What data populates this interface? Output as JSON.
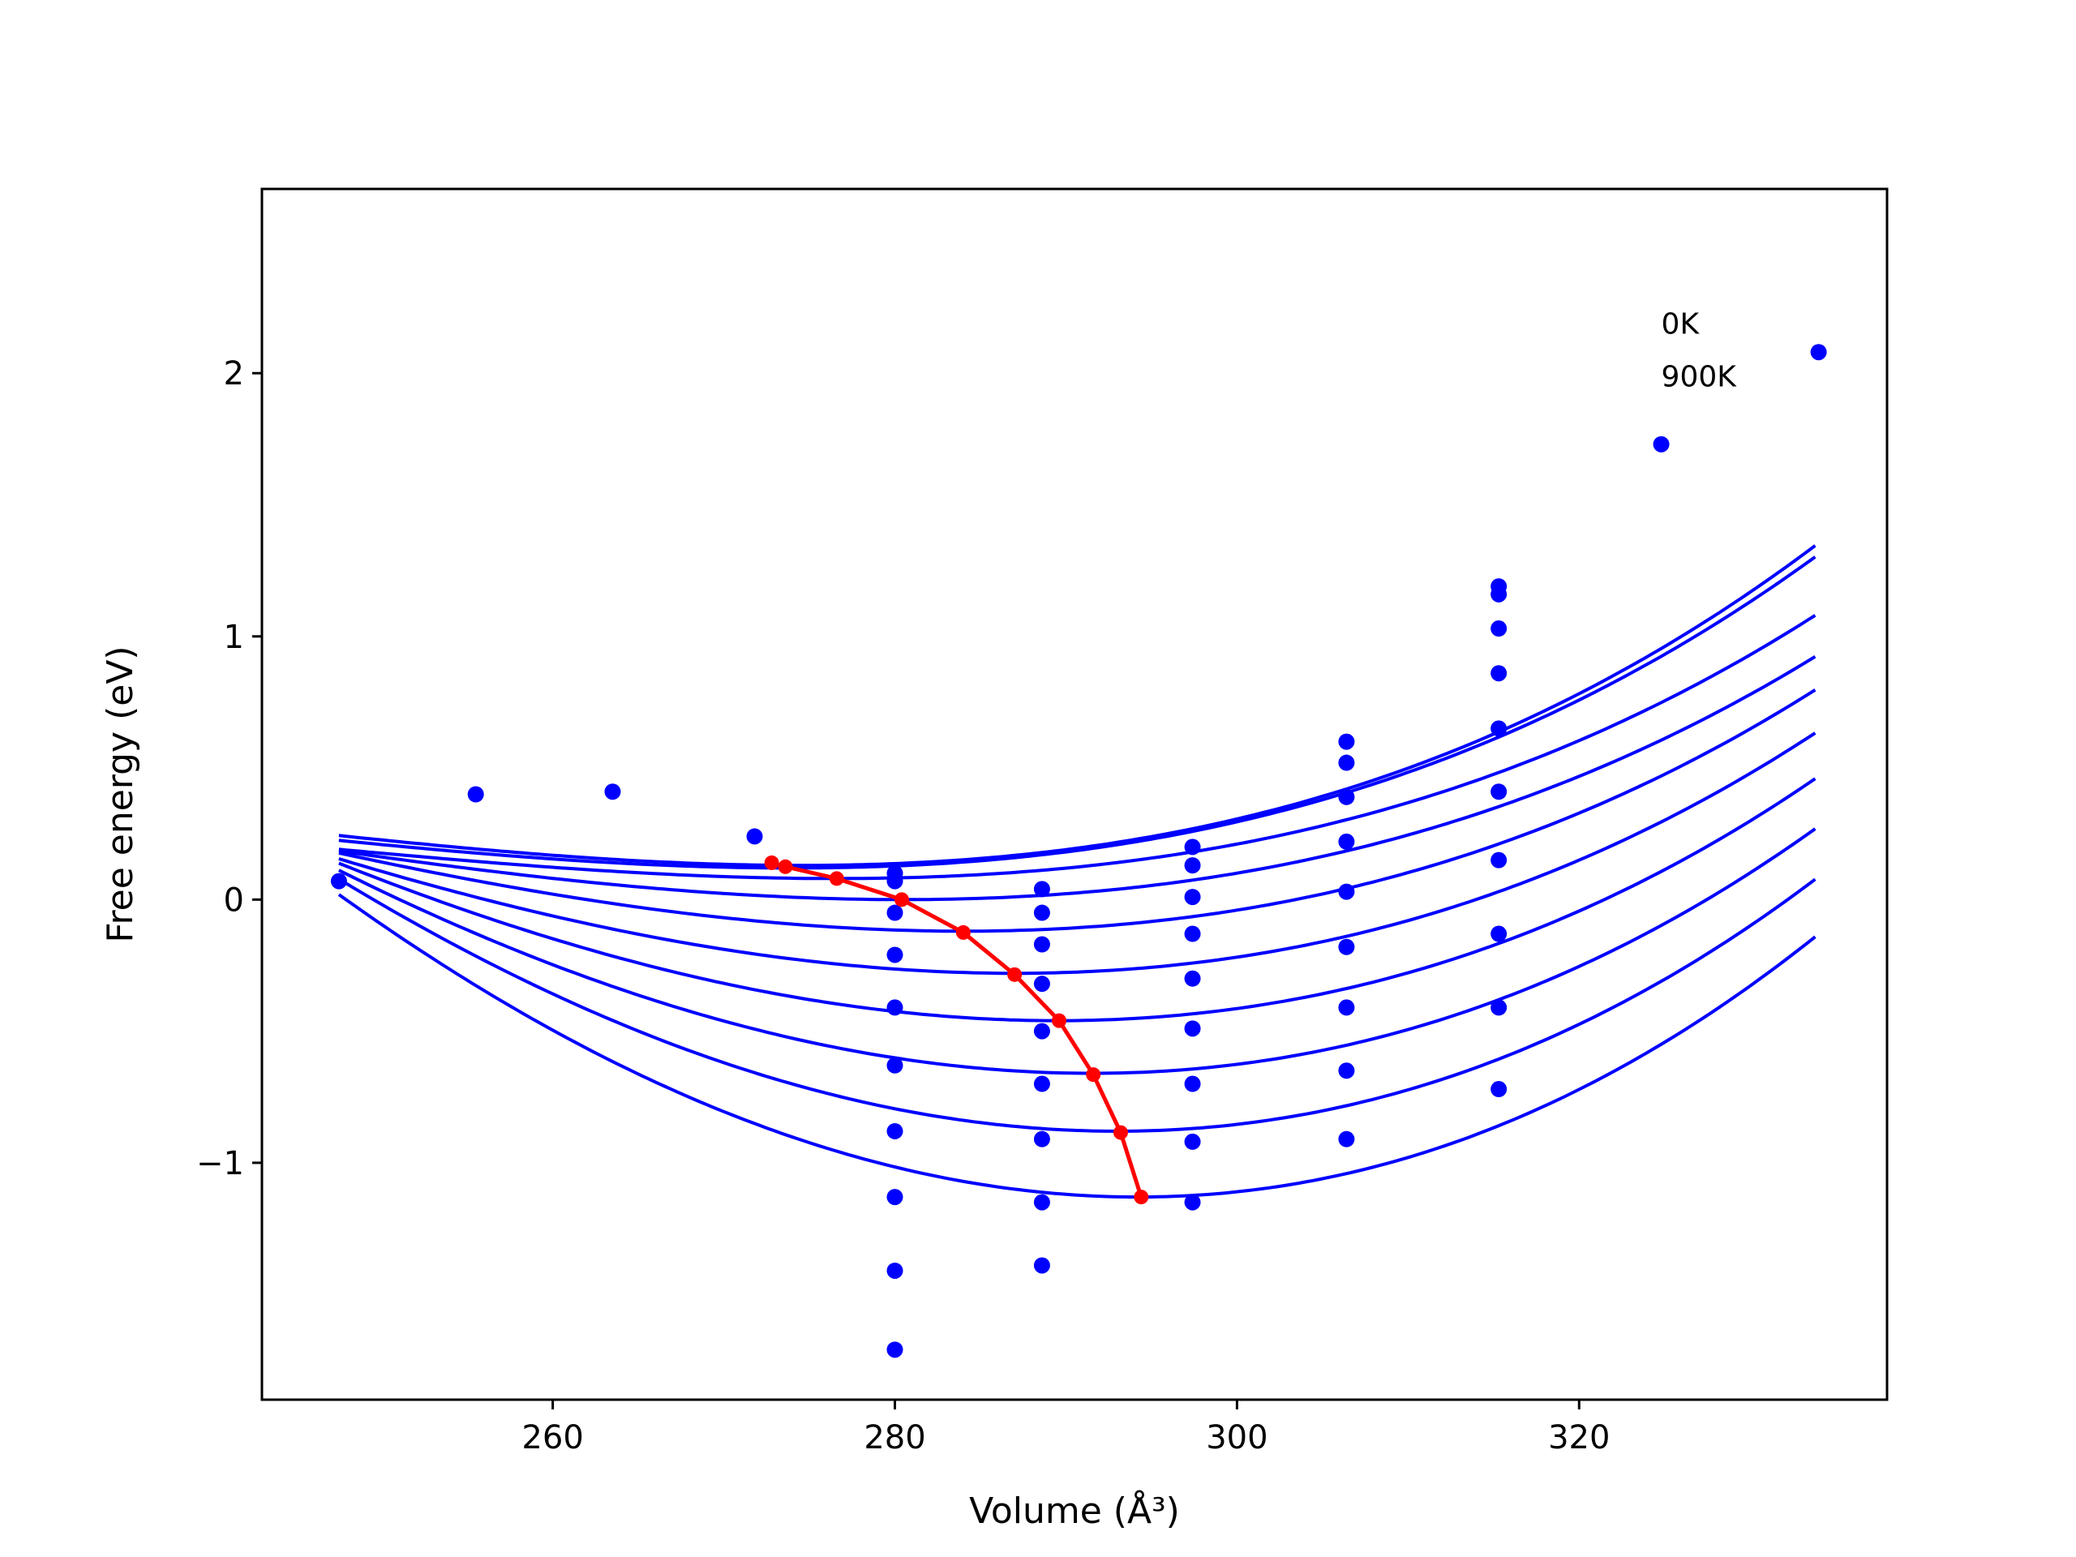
{
  "chart_data": {
    "type": "line",
    "xlabel": "Volume (Å³)",
    "ylabel": "Free energy (eV)",
    "xlim": [
      243,
      338
    ],
    "ylim": [
      -1.9,
      2.7
    ],
    "xticks": [
      260,
      280,
      300,
      320
    ],
    "yticks": [
      -1,
      0,
      1,
      2
    ],
    "ytick_labels": [
      "−1",
      "0",
      "1",
      "2"
    ],
    "grid": false,
    "annotations": [
      {
        "text": "0K",
        "x": 324.8,
        "y": 2.15
      },
      {
        "text": "900K",
        "x": 324.8,
        "y": 1.95
      }
    ],
    "curves": {
      "color": "#0000ff",
      "x_range": [
        247.5,
        333.8
      ],
      "temperatures": [
        0,
        100,
        200,
        300,
        400,
        500,
        600,
        700,
        800,
        900
      ],
      "V0": [
        274.5,
        274.0,
        276.5,
        280.5,
        284.0,
        287.0,
        289.5,
        291.5,
        293.0,
        294.2
      ],
      "E0": [
        0.13,
        0.12,
        0.08,
        0.0,
        -0.12,
        -0.28,
        -0.46,
        -0.66,
        -0.88,
        -1.13
      ],
      "B": [
        0.000215,
        0.000205,
        0.00019,
        0.000229,
        0.000285,
        0.000342,
        0.000402,
        0.00046,
        0.000522,
        0.000583
      ],
      "C": [
        2.2e-06,
        2.1e-06,
        2e-06,
        1.8e-06,
        1.7e-06,
        1.6e-06,
        1.5e-06,
        1.4e-06,
        1.3e-06,
        1.2e-06
      ]
    },
    "minima_line": {
      "color": "#ff0000",
      "points": [
        [
          272.8,
          0.14
        ],
        [
          273.6,
          0.125
        ],
        [
          276.6,
          0.08
        ],
        [
          280.4,
          0.0
        ],
        [
          284.0,
          -0.125
        ],
        [
          287.0,
          -0.285
        ],
        [
          289.6,
          -0.46
        ],
        [
          291.6,
          -0.665
        ],
        [
          293.2,
          -0.885
        ],
        [
          294.4,
          -1.13
        ]
      ]
    },
    "scatter": {
      "color": "#0000ff",
      "points": [
        [
          247.5,
          0.07
        ],
        [
          255.5,
          0.4
        ],
        [
          263.5,
          0.41
        ],
        [
          271.8,
          0.24
        ],
        [
          280.0,
          0.1
        ],
        [
          280.0,
          0.07
        ],
        [
          280.0,
          -0.05
        ],
        [
          280.0,
          -0.21
        ],
        [
          280.0,
          -0.41
        ],
        [
          280.0,
          -0.63
        ],
        [
          280.0,
          -0.88
        ],
        [
          280.0,
          -1.13
        ],
        [
          280.0,
          -1.41
        ],
        [
          280.0,
          -1.71
        ],
        [
          288.6,
          0.04
        ],
        [
          288.6,
          -0.05
        ],
        [
          288.6,
          -0.17
        ],
        [
          288.6,
          -0.32
        ],
        [
          288.6,
          -0.5
        ],
        [
          288.6,
          -0.7
        ],
        [
          288.6,
          -0.91
        ],
        [
          288.6,
          -1.15
        ],
        [
          288.6,
          -1.39
        ],
        [
          297.4,
          0.2
        ],
        [
          297.4,
          0.13
        ],
        [
          297.4,
          0.01
        ],
        [
          297.4,
          -0.13
        ],
        [
          297.4,
          -0.3
        ],
        [
          297.4,
          -0.49
        ],
        [
          297.4,
          -0.7
        ],
        [
          297.4,
          -0.92
        ],
        [
          297.4,
          -1.15
        ],
        [
          306.4,
          0.6
        ],
        [
          306.4,
          0.52
        ],
        [
          306.4,
          0.39
        ],
        [
          306.4,
          0.22
        ],
        [
          306.4,
          0.03
        ],
        [
          306.4,
          -0.18
        ],
        [
          306.4,
          -0.41
        ],
        [
          306.4,
          -0.65
        ],
        [
          306.4,
          -0.91
        ],
        [
          315.3,
          1.19
        ],
        [
          315.3,
          1.16
        ],
        [
          315.3,
          1.03
        ],
        [
          315.3,
          0.86
        ],
        [
          315.3,
          0.65
        ],
        [
          315.3,
          0.41
        ],
        [
          315.3,
          0.15
        ],
        [
          315.3,
          -0.13
        ],
        [
          315.3,
          -0.41
        ],
        [
          315.3,
          -0.72
        ],
        [
          324.8,
          1.73
        ],
        [
          334.0,
          2.08
        ]
      ]
    }
  }
}
